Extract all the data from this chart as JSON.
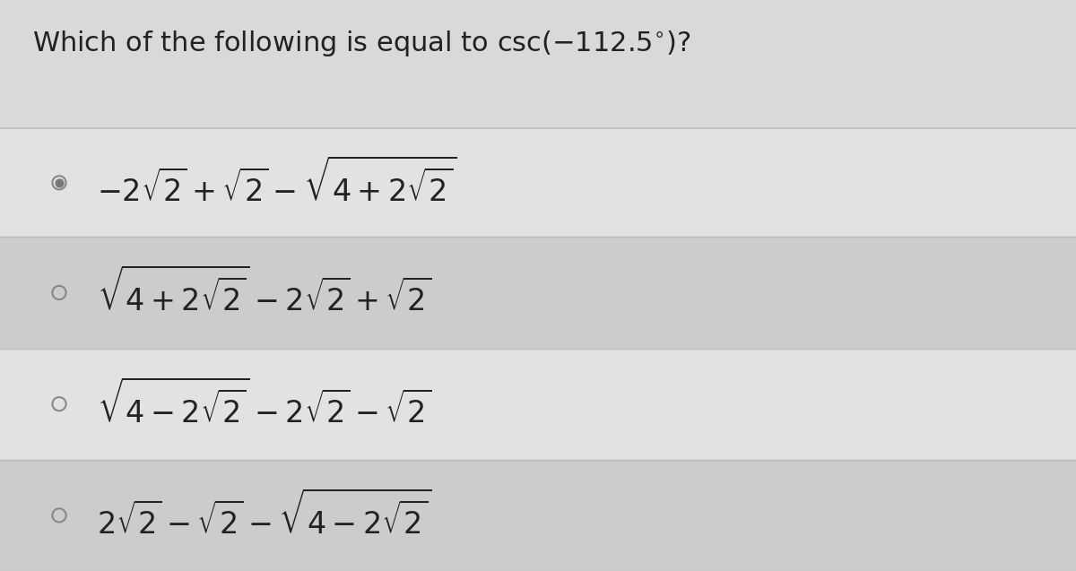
{
  "title": "Which of the following is equal to $\\mathrm{csc}(-112.5^{\\circ})$?",
  "title_fontsize": 22,
  "background_color": "#d9d9d9",
  "option_bg_colors": [
    "#e2e2e2",
    "#cccccc",
    "#e2e2e2",
    "#cccccc"
  ],
  "options": [
    "$-2\\sqrt{2}+\\sqrt{2}-\\sqrt{4+2\\sqrt{2}}$",
    "$\\sqrt{4+2\\sqrt{2}}-2\\sqrt{2}+\\sqrt{2}$",
    "$\\sqrt{4-2\\sqrt{2}}-2\\sqrt{2}-\\sqrt{2}$",
    "$2\\sqrt{2}-\\sqrt{2}-\\sqrt{4-2\\sqrt{2}}$"
  ],
  "selected": [
    true,
    false,
    false,
    false
  ],
  "option_fontsize": 24,
  "text_color": "#222222",
  "separator_color": "#bbbbbb",
  "radio_color": "#888888",
  "radio_fill_selected": "#777777"
}
